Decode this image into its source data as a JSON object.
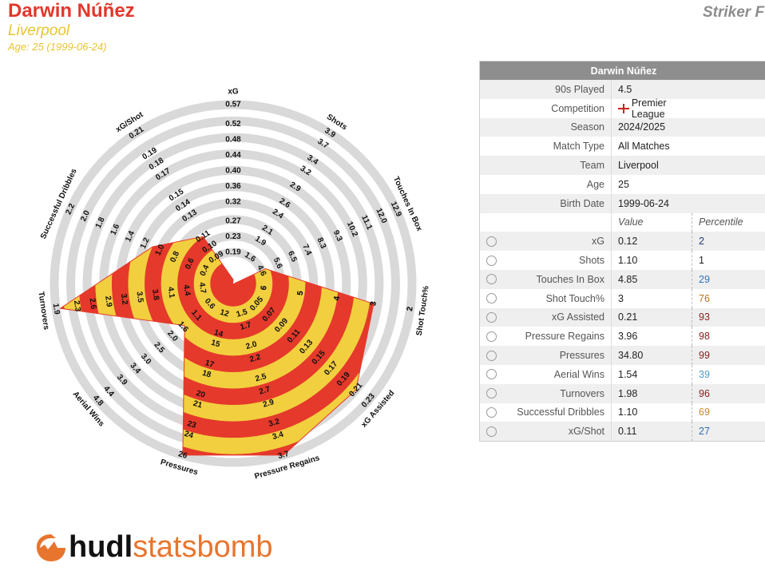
{
  "header": {
    "title": "Darwin Núñez",
    "team": "Liverpool",
    "age": "Age: 25 (1999-06-24)",
    "chart_label": "Striker F"
  },
  "chart_data": {
    "type": "radar",
    "categories": [
      "xG",
      "Shots",
      "Touches In Box",
      "Shot Touch%",
      "xG Assisted",
      "Pressure Regains",
      "Pressures",
      "Aerial Wins",
      "Turnovers",
      "Successful Dribbles",
      "xG/Shot"
    ],
    "values": [
      0.12,
      1.1,
      4.85,
      3,
      0.21,
      3.7,
      26,
      1.54,
      1.98,
      1.1,
      0.11
    ],
    "colors": [
      "#e5392b",
      "#f2cf3e"
    ],
    "rlims": [
      [
        0.19,
        0.57
      ],
      [
        1.6,
        3.9
      ],
      [
        4.6,
        12.9
      ],
      [
        6,
        2
      ],
      [
        0.05,
        0.23
      ],
      [
        1.5,
        3.7
      ],
      [
        12,
        26
      ],
      [
        0.6,
        4.8
      ],
      [
        4.7,
        1.9
      ],
      [
        0.4,
        2.2
      ],
      [
        0.09,
        0.21
      ]
    ],
    "axis_ticks": [
      [
        0.19,
        0.23,
        0.27,
        0.32,
        0.36,
        {
          "value": 0.4,
          "label": "0.40"
        },
        0.44,
        0.48,
        0.52,
        0.57
      ],
      [
        1.6,
        1.9,
        2.1,
        2.4,
        2.6,
        2.9,
        3.2,
        3.4,
        3.7,
        3.9
      ],
      [
        4.6,
        5.6,
        6.5,
        7.4,
        8.3,
        9.3,
        10.2,
        11.1,
        {
          "value": 12,
          "label": "12.0"
        },
        12.9
      ],
      [
        6,
        6,
        5,
        5,
        4,
        4,
        3,
        3,
        2,
        2
      ],
      [
        0.05,
        0.07,
        0.09,
        0.11,
        0.13,
        0.15,
        0.17,
        0.19,
        0.21,
        0.23
      ],
      [
        1.5,
        1.7,
        {
          "value": 2,
          "label": "2.0"
        },
        2.2,
        2.5,
        2.7,
        2.9,
        3.2,
        3.4,
        3.7
      ],
      [
        12,
        14,
        15,
        17,
        18,
        20,
        21,
        23,
        24,
        26
      ],
      [
        0.6,
        1.1,
        1.6,
        {
          "value": 2,
          "label": "2.0"
        },
        2.5,
        {
          "value": 3,
          "label": "3.0"
        },
        3.4,
        3.9,
        4.4,
        4.8
      ],
      [
        4.7,
        4.4,
        4.1,
        3.8,
        3.5,
        3.2,
        2.9,
        2.6,
        2.3,
        1.9
      ],
      [
        0.4,
        0.6,
        0.8,
        {
          "value": 1,
          "label": "1.0"
        },
        1.2,
        1.4,
        1.6,
        1.8,
        {
          "value": 2,
          "label": "2.0"
        },
        2.2
      ],
      [
        0.09,
        {
          "value": 0.1,
          "label": "0.10"
        },
        0.11,
        0.13,
        0.14,
        0.15,
        0.17,
        0.18,
        0.19,
        0.21
      ]
    ]
  },
  "table": {
    "title": "Darwin Núñez",
    "info_rows": [
      [
        "90s Played",
        "4.5"
      ],
      [
        "Competition",
        "Premier League"
      ],
      [
        "Season",
        "2024/2025"
      ],
      [
        "Match Type",
        "All Matches"
      ],
      [
        "Team",
        "Liverpool"
      ],
      [
        "Age",
        "25"
      ],
      [
        "Birth Date",
        "1999-06-24"
      ]
    ],
    "metric_columns": [
      "Value",
      "Percentile"
    ],
    "metric_rows": [
      {
        "metric": "xG",
        "value": "0.12",
        "percentile": 2,
        "color": "#1c3d7a"
      },
      {
        "metric": "Shots",
        "value": "1.10",
        "percentile": 1,
        "color": "#222222"
      },
      {
        "metric": "Touches In Box",
        "value": "4.85",
        "percentile": 29,
        "color": "#2f74bd"
      },
      {
        "metric": "Shot Touch%",
        "value": "3",
        "percentile": 76,
        "color": "#b8741a"
      },
      {
        "metric": "xG Assisted",
        "value": "0.21",
        "percentile": 93,
        "color": "#8b1a1a"
      },
      {
        "metric": "Pressure Regains",
        "value": "3.96",
        "percentile": 98,
        "color": "#8b1a1a"
      },
      {
        "metric": "Pressures",
        "value": "34.80",
        "percentile": 99,
        "color": "#8b1a1a"
      },
      {
        "metric": "Aerial Wins",
        "value": "1.54",
        "percentile": 39,
        "color": "#4aa0c8"
      },
      {
        "metric": "Turnovers",
        "value": "1.98",
        "percentile": 96,
        "color": "#8b1a1a"
      },
      {
        "metric": "Successful Dribbles",
        "value": "1.10",
        "percentile": 69,
        "color": "#d08a2a"
      },
      {
        "metric": "xG/Shot",
        "value": "0.11",
        "percentile": 27,
        "color": "#2f6fb5"
      }
    ]
  },
  "logo": {
    "brand": "hudl",
    "product": "statsbomb"
  }
}
